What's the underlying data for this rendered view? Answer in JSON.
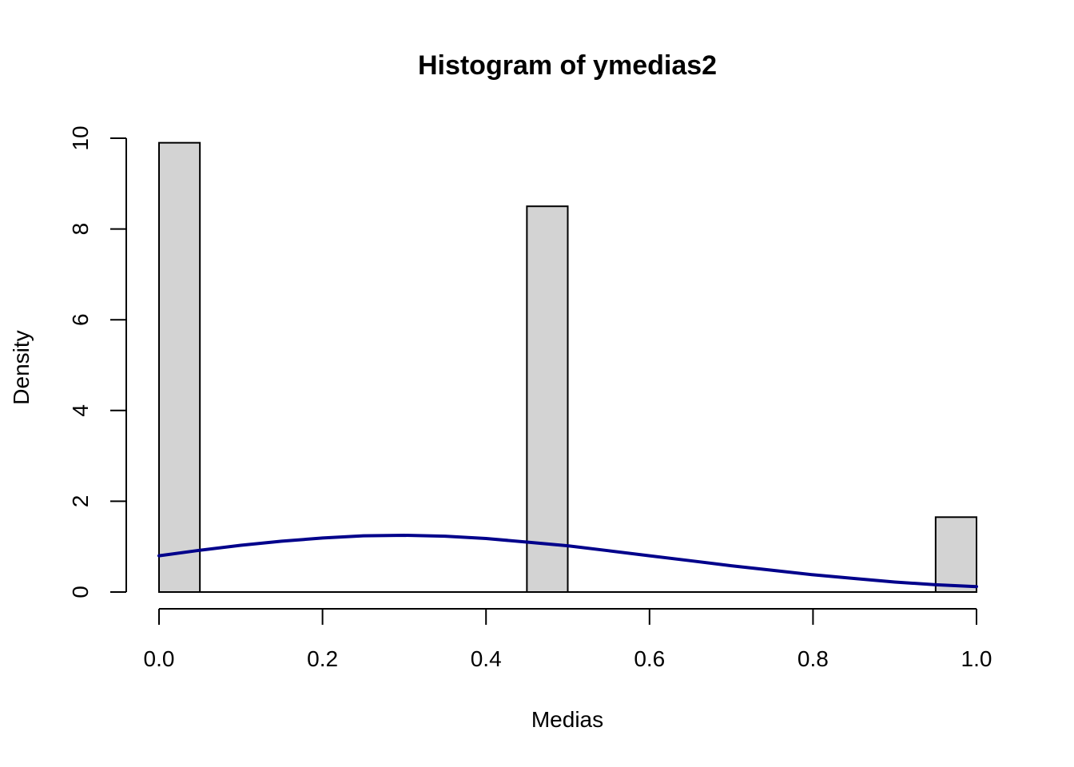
{
  "chart_data": {
    "type": "bar",
    "title": "Histogram of ymedias2",
    "xlabel": "Medias",
    "ylabel": "Density",
    "xlim": [
      0,
      1
    ],
    "ylim": [
      0,
      10
    ],
    "x_ticks": [
      "0.0",
      "0.2",
      "0.4",
      "0.6",
      "0.8",
      "1.0"
    ],
    "y_ticks": [
      "0",
      "2",
      "4",
      "6",
      "8",
      "10"
    ],
    "bars": [
      {
        "x0": 0.0,
        "x1": 0.05,
        "density": 9.9
      },
      {
        "x0": 0.45,
        "x1": 0.5,
        "density": 8.5
      },
      {
        "x0": 0.95,
        "x1": 1.0,
        "density": 1.65
      }
    ],
    "bar_color": "#d3d3d3",
    "density_curve": {
      "color": "#00008b",
      "x": [
        0.0,
        0.05,
        0.1,
        0.15,
        0.2,
        0.25,
        0.3,
        0.35,
        0.4,
        0.45,
        0.5,
        0.55,
        0.6,
        0.65,
        0.7,
        0.75,
        0.8,
        0.85,
        0.9,
        0.95,
        1.0
      ],
      "y": [
        0.8,
        0.92,
        1.03,
        1.12,
        1.19,
        1.24,
        1.25,
        1.23,
        1.18,
        1.1,
        1.02,
        0.91,
        0.8,
        0.69,
        0.58,
        0.48,
        0.38,
        0.3,
        0.22,
        0.16,
        0.12
      ]
    },
    "grid": false,
    "legend": "none"
  }
}
